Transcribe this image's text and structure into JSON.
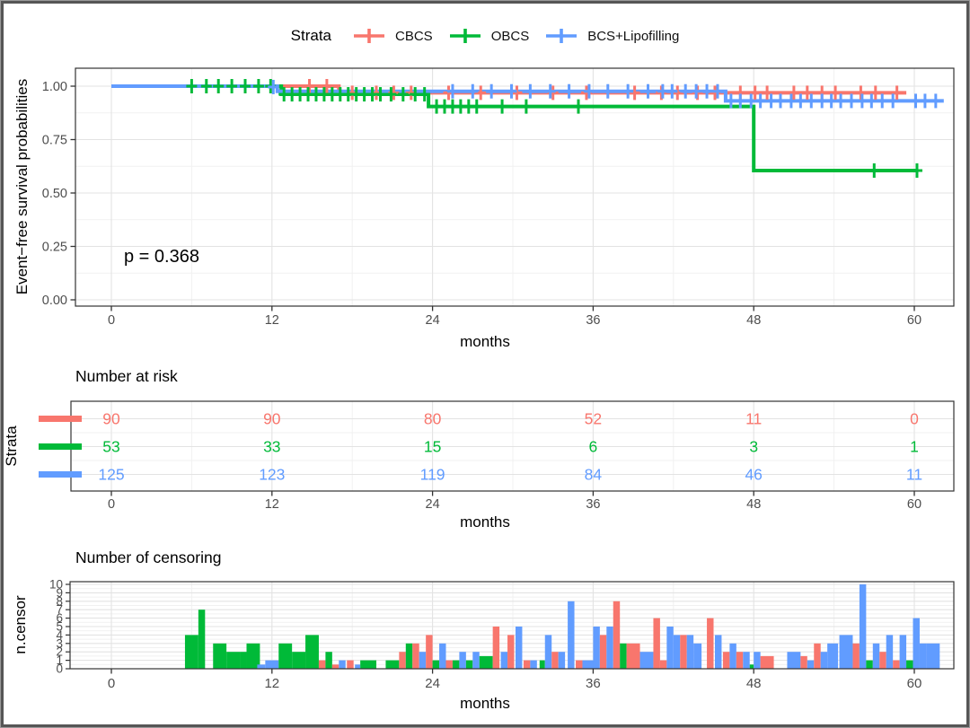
{
  "palette": {
    "r": "#F8766D",
    "g": "#00BA38",
    "b": "#619CFF"
  },
  "style": {
    "grid_major": "#e3e3e3",
    "grid_minor": "#f1f1f1",
    "panel_border": "#333333",
    "tick_mark": "#333333",
    "tick_text": "#4d4d4d"
  },
  "legend": {
    "title": "Strata",
    "items": [
      {
        "label": "CBCS",
        "ck": "r"
      },
      {
        "label": "OBCS",
        "ck": "g"
      },
      {
        "label": "BCS+Lipofilling",
        "ck": "b"
      }
    ]
  },
  "pvalue": "p = 0.368",
  "chart_data": [
    {
      "id": "survival",
      "type": "line",
      "title": "",
      "ylabel": "Event−free survival probabilities",
      "xlabel": "months",
      "xlim": [
        0,
        62.9
      ],
      "ylim": [
        0,
        1
      ],
      "x_ticks": [
        0,
        12,
        24,
        36,
        48,
        60
      ],
      "x_minor": [
        6,
        18,
        30,
        42,
        54
      ],
      "y_ticks": [
        {
          "v": 1.0,
          "label": "1.00"
        },
        {
          "v": 0.75,
          "label": "0.75"
        },
        {
          "v": 0.5,
          "label": "0.50"
        },
        {
          "v": 0.25,
          "label": "0.25"
        },
        {
          "v": 0.0,
          "label": "0.00"
        }
      ],
      "y_minor": [
        0.875,
        0.625,
        0.375,
        0.125
      ],
      "legend_position": "top",
      "grid": true,
      "pvalue": "p = 0.368",
      "series": [
        {
          "name": "CBCS",
          "ck": "r",
          "steps": [
            [
              0,
              1
            ],
            [
              17,
              1
            ],
            [
              17,
              0.969
            ],
            [
              59.4,
              0.969
            ]
          ],
          "censors": [
            [
              14.8,
              1
            ],
            [
              16.1,
              1
            ],
            [
              18,
              0.969
            ],
            [
              19.8,
              0.969
            ],
            [
              21.1,
              0.969
            ],
            [
              22.4,
              0.969
            ],
            [
              25.2,
              0.969
            ],
            [
              27.6,
              0.969
            ],
            [
              30.3,
              0.969
            ],
            [
              33,
              0.969
            ],
            [
              35.5,
              0.969
            ],
            [
              39.1,
              0.969
            ],
            [
              41.1,
              0.969
            ],
            [
              42.3,
              0.969
            ],
            [
              43.8,
              0.969
            ],
            [
              45.1,
              0.969
            ],
            [
              47,
              0.969
            ],
            [
              48.1,
              0.969
            ],
            [
              49,
              0.969
            ],
            [
              51,
              0.969
            ],
            [
              52,
              0.969
            ],
            [
              53.1,
              0.969
            ],
            [
              54.1,
              0.969
            ],
            [
              56,
              0.969
            ],
            [
              57.1,
              0.969
            ],
            [
              58.7,
              0.969
            ]
          ]
        },
        {
          "name": "OBCS",
          "ck": "g",
          "steps": [
            [
              0,
              1
            ],
            [
              12.7,
              1
            ],
            [
              12.7,
              0.962
            ],
            [
              23.7,
              0.962
            ],
            [
              23.7,
              0.905
            ],
            [
              48,
              0.905
            ],
            [
              48,
              0.605
            ],
            [
              60.3,
              0.605
            ]
          ],
          "censors": [
            [
              6,
              1
            ],
            [
              7.1,
              1
            ],
            [
              8,
              1
            ],
            [
              9,
              1
            ],
            [
              10,
              1
            ],
            [
              11,
              1
            ],
            [
              11.9,
              1
            ],
            [
              12.9,
              0.962
            ],
            [
              13.5,
              0.962
            ],
            [
              14.1,
              0.962
            ],
            [
              14.7,
              0.962
            ],
            [
              15.3,
              0.962
            ],
            [
              15.9,
              0.962
            ],
            [
              16.5,
              0.962
            ],
            [
              17.1,
              0.962
            ],
            [
              17.7,
              0.962
            ],
            [
              18.3,
              0.962
            ],
            [
              18.9,
              0.962
            ],
            [
              19.5,
              0.962
            ],
            [
              20.1,
              0.962
            ],
            [
              20.9,
              0.962
            ],
            [
              21.8,
              0.962
            ],
            [
              22.7,
              0.962
            ],
            [
              23.4,
              0.962
            ],
            [
              24.3,
              0.905
            ],
            [
              24.9,
              0.905
            ],
            [
              25.5,
              0.905
            ],
            [
              26.1,
              0.905
            ],
            [
              26.7,
              0.905
            ],
            [
              27.3,
              0.905
            ],
            [
              29.2,
              0.905
            ],
            [
              31,
              0.905
            ],
            [
              34.9,
              0.905
            ],
            [
              57,
              0.605
            ],
            [
              60.2,
              0.605
            ]
          ]
        },
        {
          "name": "BCS+Lipofilling",
          "ck": "b",
          "steps": [
            [
              0,
              1
            ],
            [
              12.4,
              1
            ],
            [
              12.4,
              0.976
            ],
            [
              45.9,
              0.976
            ],
            [
              45.9,
              0.931
            ],
            [
              62.2,
              0.931
            ]
          ],
          "censors": [
            [
              12.1,
              0.996
            ],
            [
              25.5,
              0.976
            ],
            [
              27,
              0.976
            ],
            [
              28.4,
              0.976
            ],
            [
              29.9,
              0.976
            ],
            [
              31.3,
              0.976
            ],
            [
              32.8,
              0.976
            ],
            [
              34.2,
              0.976
            ],
            [
              35.7,
              0.976
            ],
            [
              37.1,
              0.976
            ],
            [
              38.6,
              0.976
            ],
            [
              40.1,
              0.976
            ],
            [
              41.2,
              0.976
            ],
            [
              41.9,
              0.976
            ],
            [
              42.9,
              0.976
            ],
            [
              43.7,
              0.976
            ],
            [
              44.5,
              0.976
            ],
            [
              45.3,
              0.976
            ],
            [
              46.3,
              0.931
            ],
            [
              47,
              0.931
            ],
            [
              47.8,
              0.931
            ],
            [
              48.5,
              0.931
            ],
            [
              49.3,
              0.931
            ],
            [
              50,
              0.931
            ],
            [
              50.8,
              0.931
            ],
            [
              51.5,
              0.931
            ],
            [
              52.3,
              0.931
            ],
            [
              53.1,
              0.931
            ],
            [
              53.8,
              0.931
            ],
            [
              54.5,
              0.931
            ],
            [
              55.3,
              0.931
            ],
            [
              56.1,
              0.931
            ],
            [
              56.8,
              0.931
            ],
            [
              57.6,
              0.931
            ],
            [
              58.4,
              0.931
            ],
            [
              60.1,
              0.931
            ],
            [
              60.8,
              0.931
            ],
            [
              61.6,
              0.931
            ]
          ]
        }
      ]
    },
    {
      "id": "risk_table",
      "type": "table",
      "title": "Number at risk",
      "ylabel": "Strata",
      "xlabel": "months",
      "x_ticks": [
        0,
        12,
        24,
        36,
        48,
        60
      ],
      "x_minor": [
        6,
        18,
        30,
        42,
        54
      ],
      "rows": [
        {
          "name": "CBCS",
          "ck": "r",
          "values": [
            90,
            90,
            80,
            52,
            11,
            0
          ]
        },
        {
          "name": "OBCS",
          "ck": "g",
          "values": [
            53,
            33,
            15,
            6,
            3,
            1
          ]
        },
        {
          "name": "BCS+Lipofilling",
          "ck": "b",
          "values": [
            125,
            123,
            119,
            84,
            46,
            11
          ]
        }
      ]
    },
    {
      "id": "censor_hist",
      "type": "bar",
      "title": "Number of censoring",
      "ylabel": "n.censor",
      "xlabel": "months",
      "ylim": [
        0,
        10
      ],
      "y_ticks": [
        0,
        1,
        2,
        3,
        4,
        5,
        6,
        7,
        8,
        9,
        10
      ],
      "x_ticks": [
        0,
        12,
        24,
        36,
        48,
        60
      ],
      "x_minor": [
        6,
        18,
        30,
        42,
        54
      ],
      "bars": [
        [
          5.5,
          1,
          "g",
          4
        ],
        [
          6.5,
          0.5,
          "g",
          7
        ],
        [
          7.6,
          1,
          "g",
          3
        ],
        [
          8.6,
          1,
          "g",
          2
        ],
        [
          9.6,
          0.5,
          "g",
          2
        ],
        [
          10.1,
          1,
          "g",
          3
        ],
        [
          10.9,
          0.6,
          "b",
          0.5
        ],
        [
          11.5,
          1,
          "b",
          1
        ],
        [
          12.5,
          1,
          "g",
          3
        ],
        [
          13.5,
          1,
          "g",
          2
        ],
        [
          14.5,
          1,
          "g",
          4
        ],
        [
          15.5,
          0.5,
          "r",
          1
        ],
        [
          16,
          0.5,
          "g",
          2
        ],
        [
          16.5,
          0.5,
          "r",
          0.5
        ],
        [
          17,
          0.5,
          "b",
          1
        ],
        [
          17.6,
          0.5,
          "r",
          1
        ],
        [
          18.2,
          0.4,
          "b",
          0.5
        ],
        [
          18.6,
          1.2,
          "g",
          1
        ],
        [
          20.5,
          1,
          "g",
          1
        ],
        [
          21.5,
          0.5,
          "r",
          2
        ],
        [
          22,
          0.5,
          "g",
          3
        ],
        [
          22.5,
          0.5,
          "r",
          3
        ],
        [
          23,
          0.5,
          "b",
          2
        ],
        [
          23.5,
          0.5,
          "r",
          4
        ],
        [
          24,
          0.5,
          "g",
          1
        ],
        [
          24.5,
          0.5,
          "b",
          3
        ],
        [
          25,
          0.5,
          "r",
          1
        ],
        [
          25.5,
          0.5,
          "g",
          1
        ],
        [
          26,
          0.5,
          "b",
          2
        ],
        [
          26.5,
          0.5,
          "g",
          1
        ],
        [
          27,
          0.5,
          "b",
          2
        ],
        [
          27.5,
          1,
          "g",
          1.5
        ],
        [
          28.5,
          0.5,
          "r",
          5
        ],
        [
          29.1,
          0.5,
          "b",
          2
        ],
        [
          29.6,
          0.5,
          "r",
          4
        ],
        [
          30.2,
          0.5,
          "b",
          5
        ],
        [
          30.8,
          0.5,
          "r",
          1
        ],
        [
          31.3,
          0.5,
          "b",
          1
        ],
        [
          32,
          0.4,
          "g",
          1
        ],
        [
          32.4,
          0.5,
          "b",
          4
        ],
        [
          32.9,
          0.5,
          "r",
          2
        ],
        [
          33.4,
          0.5,
          "b",
          2
        ],
        [
          34.1,
          0.5,
          "b",
          8
        ],
        [
          34.7,
          0.5,
          "r",
          1
        ],
        [
          35.2,
          1,
          "b",
          1
        ],
        [
          36,
          0.5,
          "b",
          5
        ],
        [
          36.5,
          0.5,
          "r",
          4
        ],
        [
          37,
          0.5,
          "b",
          5
        ],
        [
          37.5,
          0.5,
          "r",
          8
        ],
        [
          38,
          0.5,
          "g",
          3
        ],
        [
          38.5,
          1,
          "r",
          3
        ],
        [
          39.5,
          1,
          "b",
          2
        ],
        [
          40.5,
          0.5,
          "r",
          6
        ],
        [
          41,
          0.5,
          "r",
          1
        ],
        [
          41.5,
          0.5,
          "b",
          5
        ],
        [
          42,
          0.5,
          "b",
          4
        ],
        [
          42.5,
          0.5,
          "r",
          4
        ],
        [
          43,
          0.5,
          "b",
          4
        ],
        [
          43.5,
          0.6,
          "b",
          3
        ],
        [
          44.5,
          0.5,
          "r",
          6
        ],
        [
          45.1,
          0.5,
          "b",
          4
        ],
        [
          45.7,
          0.5,
          "r",
          2
        ],
        [
          46.2,
          0.5,
          "b",
          3
        ],
        [
          46.7,
          0.5,
          "r",
          2
        ],
        [
          47.2,
          0.5,
          "b",
          2
        ],
        [
          47.7,
          0.3,
          "g",
          0.5
        ],
        [
          48,
          0.5,
          "b",
          2
        ],
        [
          48.5,
          1,
          "r",
          1.5
        ],
        [
          50.5,
          1,
          "b",
          2
        ],
        [
          51.5,
          0.5,
          "r",
          1.5
        ],
        [
          52,
          0.5,
          "b",
          1
        ],
        [
          52.5,
          0.5,
          "r",
          3
        ],
        [
          53,
          0.5,
          "b",
          2
        ],
        [
          53.5,
          0.8,
          "b",
          3
        ],
        [
          54.4,
          1,
          "b",
          4
        ],
        [
          55.4,
          0.5,
          "r",
          3
        ],
        [
          55.9,
          0.5,
          "b",
          10
        ],
        [
          56.4,
          0.5,
          "g",
          1
        ],
        [
          56.9,
          0.5,
          "b",
          3
        ],
        [
          57.4,
          0.5,
          "r",
          2
        ],
        [
          57.9,
          0.5,
          "b",
          4
        ],
        [
          58.4,
          0.5,
          "r",
          1
        ],
        [
          58.9,
          0.5,
          "b",
          4
        ],
        [
          59.4,
          0.5,
          "g",
          1
        ],
        [
          59.9,
          0.5,
          "b",
          6
        ],
        [
          60.4,
          0.5,
          "b",
          3
        ],
        [
          60.9,
          1,
          "b",
          3
        ]
      ]
    }
  ]
}
